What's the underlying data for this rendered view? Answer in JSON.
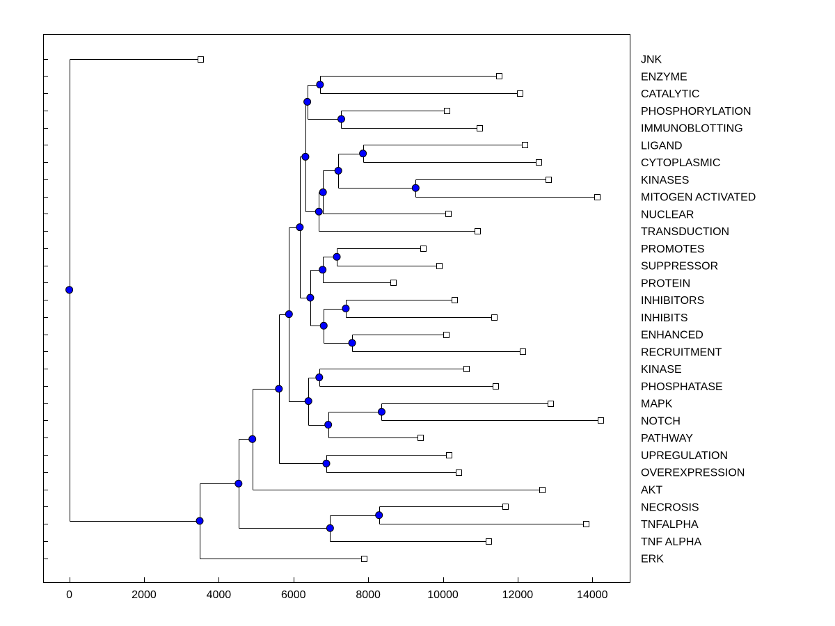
{
  "chart_data": {
    "type": "dendrogram",
    "title": "",
    "xlabel": "",
    "ylabel": "",
    "xlim": [
      -700,
      15000
    ],
    "x_ticks": [
      0,
      2000,
      4000,
      6000,
      8000,
      10000,
      12000,
      14000
    ],
    "x_tick_labels": [
      "0",
      "2000",
      "4000",
      "6000",
      "8000",
      "10000",
      "12000",
      "14000"
    ],
    "colors": {
      "node": "#0000ff",
      "leaf_fill": "#ffffff",
      "line": "#000000"
    },
    "leaves": [
      {
        "name": "JNK",
        "x": 3500
      },
      {
        "name": "ENZYME",
        "x": 11500
      },
      {
        "name": "CATALYTIC",
        "x": 12050
      },
      {
        "name": "PHOSPHORYLATION",
        "x": 10100
      },
      {
        "name": "IMMUNOBLOTTING",
        "x": 10970
      },
      {
        "name": "LIGAND",
        "x": 12180
      },
      {
        "name": "CYTOPLASMIC",
        "x": 12560
      },
      {
        "name": "KINASES",
        "x": 12830
      },
      {
        "name": "MITOGEN ACTIVATED",
        "x": 14120
      },
      {
        "name": "NUCLEAR",
        "x": 10140
      },
      {
        "name": "TRANSDUCTION",
        "x": 10920
      },
      {
        "name": "PROMOTES",
        "x": 9460
      },
      {
        "name": "SUPPRESSOR",
        "x": 9900
      },
      {
        "name": "PROTEIN",
        "x": 8670
      },
      {
        "name": "INHIBITORS",
        "x": 10300
      },
      {
        "name": "INHIBITS",
        "x": 11370
      },
      {
        "name": "ENHANCED",
        "x": 10080
      },
      {
        "name": "RECRUITMENT",
        "x": 12130
      },
      {
        "name": "KINASE",
        "x": 10620
      },
      {
        "name": "PHOSPHATASE",
        "x": 11400
      },
      {
        "name": "MAPK",
        "x": 12870
      },
      {
        "name": "NOTCH",
        "x": 14220
      },
      {
        "name": "PATHWAY",
        "x": 9400
      },
      {
        "name": "UPREGULATION",
        "x": 10160
      },
      {
        "name": "OVEREXPRESSION",
        "x": 10410
      },
      {
        "name": "AKT",
        "x": 12650
      },
      {
        "name": "NECROSIS",
        "x": 11670
      },
      {
        "name": "TNFALPHA",
        "x": 13820
      },
      {
        "name": "TNF ALPHA",
        "x": 11220
      },
      {
        "name": "ERK",
        "x": 7880
      }
    ],
    "merges": [
      {
        "id": "N1",
        "x": 6710,
        "children": [
          "ENZYME",
          "CATALYTIC"
        ]
      },
      {
        "id": "N2",
        "x": 7280,
        "children": [
          "PHOSPHORYLATION",
          "IMMUNOBLOTTING"
        ]
      },
      {
        "id": "N3",
        "x": 6370,
        "children": [
          "N1",
          "N2"
        ]
      },
      {
        "id": "N4",
        "x": 7860,
        "children": [
          "LIGAND",
          "CYTOPLASMIC"
        ]
      },
      {
        "id": "N5",
        "x": 9270,
        "children": [
          "KINASES",
          "MITOGEN ACTIVATED"
        ]
      },
      {
        "id": "N6",
        "x": 7200,
        "children": [
          "N4",
          "N5"
        ]
      },
      {
        "id": "N7",
        "x": 6790,
        "children": [
          "N6",
          "NUCLEAR"
        ]
      },
      {
        "id": "N8",
        "x": 6680,
        "children": [
          "N7",
          "TRANSDUCTION"
        ]
      },
      {
        "id": "N9",
        "x": 6320,
        "children": [
          "N3",
          "N8"
        ]
      },
      {
        "id": "N10",
        "x": 7160,
        "children": [
          "PROMOTES",
          "SUPPRESSOR"
        ]
      },
      {
        "id": "N11",
        "x": 6780,
        "children": [
          "N10",
          "PROTEIN"
        ]
      },
      {
        "id": "N12",
        "x": 7400,
        "children": [
          "INHIBITORS",
          "INHIBITS"
        ]
      },
      {
        "id": "N13",
        "x": 7570,
        "children": [
          "ENHANCED",
          "RECRUITMENT"
        ]
      },
      {
        "id": "N14",
        "x": 6810,
        "children": [
          "N12",
          "N13"
        ]
      },
      {
        "id": "N15",
        "x": 6450,
        "children": [
          "N11",
          "N14"
        ]
      },
      {
        "id": "N16",
        "x": 6170,
        "children": [
          "N9",
          "N15"
        ]
      },
      {
        "id": "N17",
        "x": 6690,
        "children": [
          "KINASE",
          "PHOSPHATASE"
        ]
      },
      {
        "id": "N18",
        "x": 8360,
        "children": [
          "MAPK",
          "NOTCH"
        ]
      },
      {
        "id": "N19",
        "x": 6930,
        "children": [
          "N18",
          "PATHWAY"
        ]
      },
      {
        "id": "N20",
        "x": 6400,
        "children": [
          "N17",
          "N19"
        ]
      },
      {
        "id": "N21",
        "x": 5880,
        "children": [
          "N16",
          "N20"
        ]
      },
      {
        "id": "N22",
        "x": 6880,
        "children": [
          "UPREGULATION",
          "OVEREXPRESSION"
        ]
      },
      {
        "id": "N23",
        "x": 5610,
        "children": [
          "N21",
          "N22"
        ]
      },
      {
        "id": "N24",
        "x": 4900,
        "children": [
          "N23",
          "AKT"
        ]
      },
      {
        "id": "N25",
        "x": 8290,
        "children": [
          "NECROSIS",
          "TNFALPHA"
        ]
      },
      {
        "id": "N26",
        "x": 6980,
        "children": [
          "N25",
          "TNF ALPHA"
        ]
      },
      {
        "id": "N27",
        "x": 4530,
        "children": [
          "N24",
          "N26"
        ]
      },
      {
        "id": "N28",
        "x": 3490,
        "children": [
          "N27",
          "ERK"
        ]
      },
      {
        "id": "ROOT",
        "x": 0,
        "children": [
          "JNK",
          "N28"
        ]
      }
    ]
  }
}
